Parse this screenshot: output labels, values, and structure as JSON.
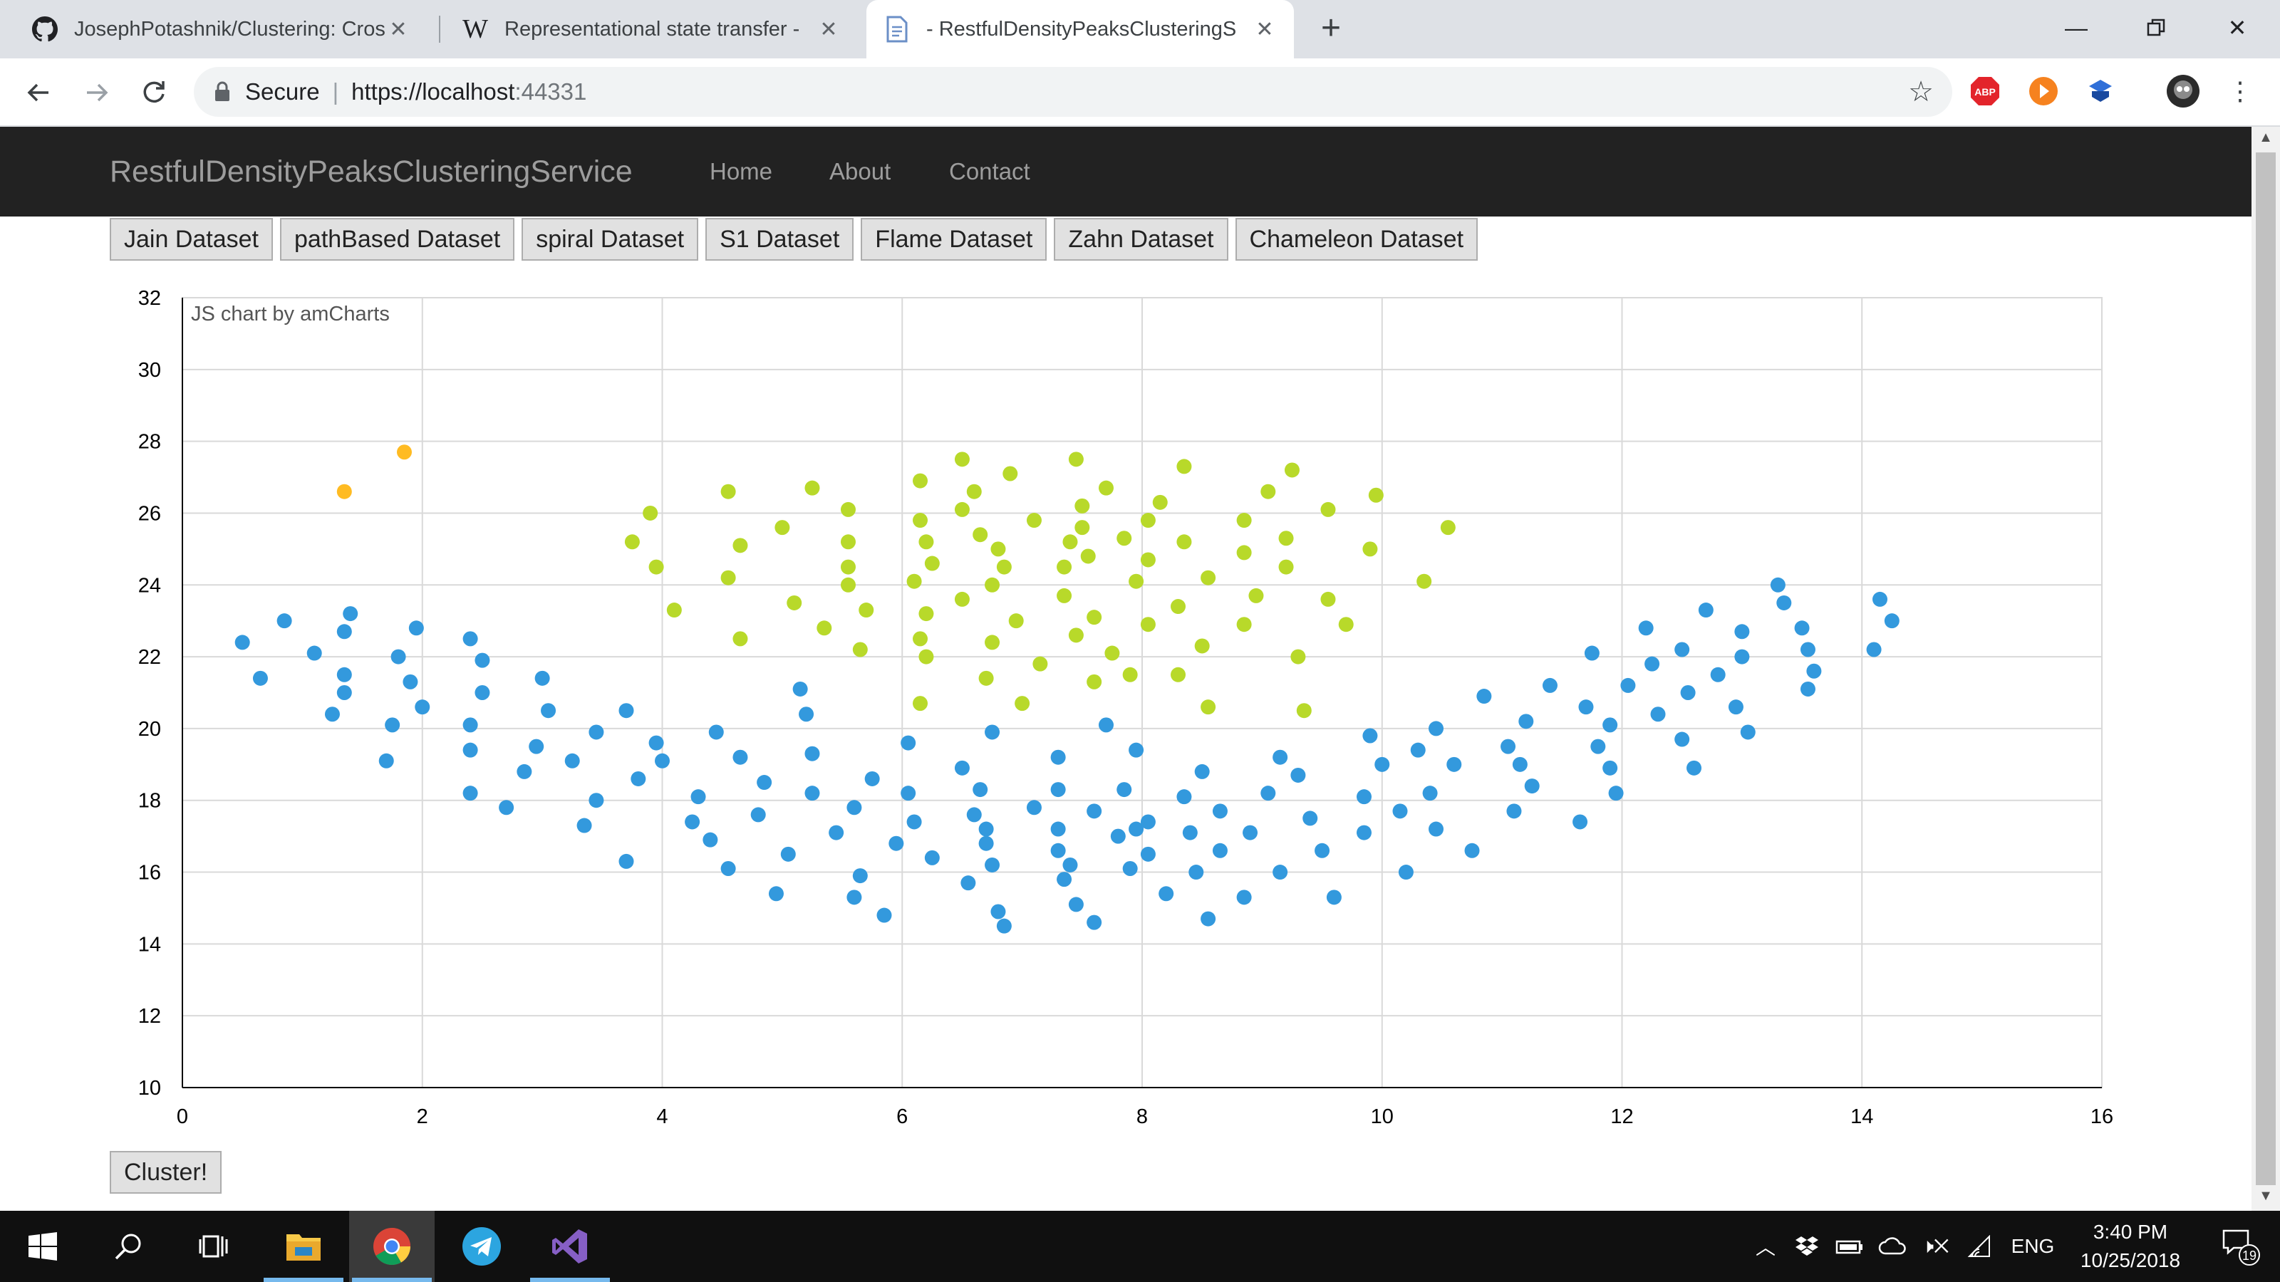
{
  "browser": {
    "tabs": [
      {
        "title": "JosephPotashnik/Clustering: Cros",
        "icon": "github-icon"
      },
      {
        "title": "Representational state transfer - ",
        "icon": "wikipedia-icon"
      },
      {
        "title": "- RestfulDensityPeaksClusteringS",
        "icon": "document-icon",
        "active": true
      }
    ],
    "address": {
      "secure_label": "Secure",
      "url_host": "https://localhost",
      "url_port": ":44331"
    },
    "extensions": [
      "adblock-icon",
      "play-icon",
      "extension-icon",
      "profile-avatar-icon"
    ]
  },
  "navbar": {
    "brand": "RestfulDensityPeaksClusteringService",
    "links": [
      "Home",
      "About",
      "Contact"
    ]
  },
  "datasets": [
    "Jain Dataset",
    "pathBased Dataset",
    "spiral Dataset",
    "S1 Dataset",
    "Flame Dataset",
    "Zahn Dataset",
    "Chameleon Dataset"
  ],
  "cluster_button": "Cluster!",
  "colors": {
    "cluster_blue": "#3399dd",
    "cluster_green": "#b8d92a",
    "cluster_orange": "#ffbb22"
  },
  "chart_data": {
    "type": "scatter",
    "credit": "JS chart by amCharts",
    "xlim": [
      0,
      16
    ],
    "ylim": [
      10,
      32
    ],
    "x_ticks": [
      "0",
      "2",
      "4",
      "6",
      "8",
      "10",
      "12",
      "14",
      "16"
    ],
    "y_ticks": [
      "10",
      "12",
      "14",
      "16",
      "18",
      "20",
      "22",
      "24",
      "26",
      "28",
      "30",
      "32"
    ],
    "grid": true,
    "series": [
      {
        "color": "#3399dd",
        "points": [
          [
            0.5,
            22.4
          ],
          [
            0.65,
            21.4
          ],
          [
            0.85,
            23.0
          ],
          [
            1.1,
            22.1
          ],
          [
            1.25,
            20.4
          ],
          [
            1.35,
            22.7
          ],
          [
            1.35,
            21.5
          ],
          [
            1.35,
            21.0
          ],
          [
            1.4,
            23.2
          ],
          [
            1.7,
            19.1
          ],
          [
            1.75,
            20.1
          ],
          [
            1.8,
            22.0
          ],
          [
            1.9,
            21.3
          ],
          [
            1.95,
            22.8
          ],
          [
            2.0,
            20.6
          ],
          [
            2.4,
            22.5
          ],
          [
            2.4,
            20.1
          ],
          [
            2.4,
            19.4
          ],
          [
            2.4,
            18.2
          ],
          [
            2.5,
            21.9
          ],
          [
            2.5,
            21.0
          ],
          [
            2.7,
            17.8
          ],
          [
            2.85,
            18.8
          ],
          [
            2.95,
            19.5
          ],
          [
            3.0,
            21.4
          ],
          [
            3.05,
            20.5
          ],
          [
            3.25,
            19.1
          ],
          [
            3.35,
            17.3
          ],
          [
            3.45,
            19.9
          ],
          [
            3.45,
            18.0
          ],
          [
            3.7,
            20.5
          ],
          [
            3.7,
            16.3
          ],
          [
            3.8,
            18.6
          ],
          [
            3.95,
            19.6
          ],
          [
            4.0,
            19.1
          ],
          [
            4.25,
            17.4
          ],
          [
            4.3,
            18.1
          ],
          [
            4.4,
            16.9
          ],
          [
            4.45,
            19.9
          ],
          [
            4.55,
            16.1
          ],
          [
            4.65,
            19.2
          ],
          [
            4.8,
            17.6
          ],
          [
            4.85,
            18.5
          ],
          [
            4.95,
            15.4
          ],
          [
            5.05,
            16.5
          ],
          [
            5.15,
            21.1
          ],
          [
            5.2,
            20.4
          ],
          [
            5.25,
            18.2
          ],
          [
            5.25,
            19.3
          ],
          [
            5.45,
            17.1
          ],
          [
            5.6,
            17.8
          ],
          [
            5.6,
            15.3
          ],
          [
            5.65,
            15.9
          ],
          [
            5.75,
            18.6
          ],
          [
            5.85,
            14.8
          ],
          [
            5.95,
            16.8
          ],
          [
            6.05,
            19.6
          ],
          [
            6.05,
            18.2
          ],
          [
            6.1,
            17.4
          ],
          [
            6.25,
            16.4
          ],
          [
            6.5,
            18.9
          ],
          [
            6.55,
            15.7
          ],
          [
            6.6,
            17.6
          ],
          [
            6.65,
            18.3
          ],
          [
            6.7,
            17.2
          ],
          [
            6.7,
            16.8
          ],
          [
            6.75,
            19.9
          ],
          [
            6.75,
            16.2
          ],
          [
            6.8,
            14.9
          ],
          [
            6.85,
            14.5
          ],
          [
            7.1,
            17.8
          ],
          [
            7.3,
            19.2
          ],
          [
            7.3,
            18.3
          ],
          [
            7.3,
            17.2
          ],
          [
            7.3,
            16.6
          ],
          [
            7.35,
            15.8
          ],
          [
            7.4,
            16.2
          ],
          [
            7.45,
            15.1
          ],
          [
            7.6,
            17.7
          ],
          [
            7.6,
            14.6
          ],
          [
            7.7,
            20.1
          ],
          [
            7.8,
            17.0
          ],
          [
            7.85,
            18.3
          ],
          [
            7.9,
            16.1
          ],
          [
            7.95,
            19.4
          ],
          [
            7.95,
            17.2
          ],
          [
            8.05,
            17.4
          ],
          [
            8.05,
            16.5
          ],
          [
            8.2,
            15.4
          ],
          [
            8.35,
            18.1
          ],
          [
            8.4,
            17.1
          ],
          [
            8.45,
            16.0
          ],
          [
            8.5,
            18.8
          ],
          [
            8.55,
            14.7
          ],
          [
            8.65,
            17.7
          ],
          [
            8.65,
            16.6
          ],
          [
            8.85,
            15.3
          ],
          [
            8.9,
            17.1
          ],
          [
            9.05,
            18.2
          ],
          [
            9.15,
            19.2
          ],
          [
            9.15,
            16.0
          ],
          [
            9.3,
            18.7
          ],
          [
            9.4,
            17.5
          ],
          [
            9.5,
            16.6
          ],
          [
            9.6,
            15.3
          ],
          [
            9.85,
            18.1
          ],
          [
            9.85,
            17.1
          ],
          [
            9.9,
            19.8
          ],
          [
            10.0,
            19.0
          ],
          [
            10.15,
            17.7
          ],
          [
            10.2,
            16.0
          ],
          [
            10.3,
            19.4
          ],
          [
            10.4,
            18.2
          ],
          [
            10.45,
            17.2
          ],
          [
            10.45,
            20.0
          ],
          [
            10.6,
            19.0
          ],
          [
            10.75,
            16.6
          ],
          [
            10.85,
            20.9
          ],
          [
            11.05,
            19.5
          ],
          [
            11.1,
            17.7
          ],
          [
            11.15,
            19.0
          ],
          [
            11.2,
            20.2
          ],
          [
            11.25,
            18.4
          ],
          [
            11.4,
            21.2
          ],
          [
            11.65,
            17.4
          ],
          [
            11.7,
            20.6
          ],
          [
            11.75,
            22.1
          ],
          [
            11.8,
            19.5
          ],
          [
            11.9,
            20.1
          ],
          [
            11.9,
            18.9
          ],
          [
            11.95,
            18.2
          ],
          [
            12.05,
            21.2
          ],
          [
            12.2,
            22.8
          ],
          [
            12.25,
            21.8
          ],
          [
            12.3,
            20.4
          ],
          [
            12.5,
            22.2
          ],
          [
            12.5,
            19.7
          ],
          [
            12.55,
            21.0
          ],
          [
            12.6,
            18.9
          ],
          [
            12.7,
            23.3
          ],
          [
            12.8,
            21.5
          ],
          [
            12.95,
            20.6
          ],
          [
            13.0,
            22.7
          ],
          [
            13.0,
            22.0
          ],
          [
            13.05,
            19.9
          ],
          [
            13.3,
            24.0
          ],
          [
            13.35,
            23.5
          ],
          [
            13.5,
            22.8
          ],
          [
            13.55,
            22.2
          ],
          [
            13.55,
            21.1
          ],
          [
            13.6,
            21.6
          ],
          [
            14.1,
            22.2
          ],
          [
            14.15,
            23.6
          ],
          [
            14.25,
            23.0
          ]
        ]
      },
      {
        "color": "#b8d92a",
        "points": [
          [
            3.75,
            25.2
          ],
          [
            3.9,
            26.0
          ],
          [
            3.95,
            24.5
          ],
          [
            4.1,
            23.3
          ],
          [
            4.55,
            26.6
          ],
          [
            4.55,
            24.2
          ],
          [
            4.65,
            25.1
          ],
          [
            4.65,
            22.5
          ],
          [
            5.0,
            25.6
          ],
          [
            5.1,
            23.5
          ],
          [
            5.25,
            26.7
          ],
          [
            5.35,
            22.8
          ],
          [
            5.55,
            26.1
          ],
          [
            5.55,
            25.2
          ],
          [
            5.55,
            24.5
          ],
          [
            5.55,
            24.0
          ],
          [
            5.65,
            22.2
          ],
          [
            5.7,
            23.3
          ],
          [
            6.1,
            24.1
          ],
          [
            6.15,
            26.9
          ],
          [
            6.15,
            25.8
          ],
          [
            6.15,
            22.5
          ],
          [
            6.15,
            20.7
          ],
          [
            6.2,
            25.2
          ],
          [
            6.2,
            23.2
          ],
          [
            6.2,
            22.0
          ],
          [
            6.25,
            24.6
          ],
          [
            6.5,
            27.5
          ],
          [
            6.5,
            26.1
          ],
          [
            6.5,
            23.6
          ],
          [
            6.6,
            26.6
          ],
          [
            6.65,
            25.4
          ],
          [
            6.7,
            21.4
          ],
          [
            6.75,
            24.0
          ],
          [
            6.75,
            22.4
          ],
          [
            6.8,
            25.0
          ],
          [
            6.85,
            24.5
          ],
          [
            6.9,
            27.1
          ],
          [
            6.95,
            23.0
          ],
          [
            7.0,
            20.7
          ],
          [
            7.1,
            25.8
          ],
          [
            7.15,
            21.8
          ],
          [
            7.35,
            24.5
          ],
          [
            7.35,
            23.7
          ],
          [
            7.4,
            25.2
          ],
          [
            7.45,
            27.5
          ],
          [
            7.45,
            22.6
          ],
          [
            7.5,
            26.2
          ],
          [
            7.5,
            25.6
          ],
          [
            7.55,
            24.8
          ],
          [
            7.6,
            23.1
          ],
          [
            7.6,
            21.3
          ],
          [
            7.7,
            26.7
          ],
          [
            7.75,
            22.1
          ],
          [
            7.85,
            25.3
          ],
          [
            7.9,
            21.5
          ],
          [
            7.95,
            24.1
          ],
          [
            8.05,
            25.8
          ],
          [
            8.05,
            24.7
          ],
          [
            8.05,
            22.9
          ],
          [
            8.15,
            26.3
          ],
          [
            8.3,
            23.4
          ],
          [
            8.3,
            21.5
          ],
          [
            8.35,
            27.3
          ],
          [
            8.35,
            25.2
          ],
          [
            8.5,
            22.3
          ],
          [
            8.55,
            24.2
          ],
          [
            8.55,
            20.6
          ],
          [
            8.85,
            25.8
          ],
          [
            8.85,
            24.9
          ],
          [
            8.85,
            22.9
          ],
          [
            8.95,
            23.7
          ],
          [
            9.05,
            26.6
          ],
          [
            9.2,
            25.3
          ],
          [
            9.2,
            24.5
          ],
          [
            9.25,
            27.2
          ],
          [
            9.3,
            22.0
          ],
          [
            9.35,
            20.5
          ],
          [
            9.55,
            26.1
          ],
          [
            9.55,
            23.6
          ],
          [
            9.7,
            22.9
          ],
          [
            9.9,
            25.0
          ],
          [
            9.95,
            26.5
          ],
          [
            10.35,
            24.1
          ],
          [
            10.55,
            25.6
          ]
        ]
      },
      {
        "color": "#ffbb22",
        "points": [
          [
            1.35,
            26.6
          ],
          [
            1.85,
            27.7
          ]
        ]
      }
    ]
  },
  "taskbar": {
    "icons": [
      "windows-start-icon",
      "search-icon",
      "task-view-icon",
      "file-explorer-icon",
      "chrome-icon",
      "telegram-icon",
      "visual-studio-icon"
    ],
    "language": "ENG",
    "time": "3:40 PM",
    "date": "10/25/2018",
    "notification_count": "19"
  }
}
